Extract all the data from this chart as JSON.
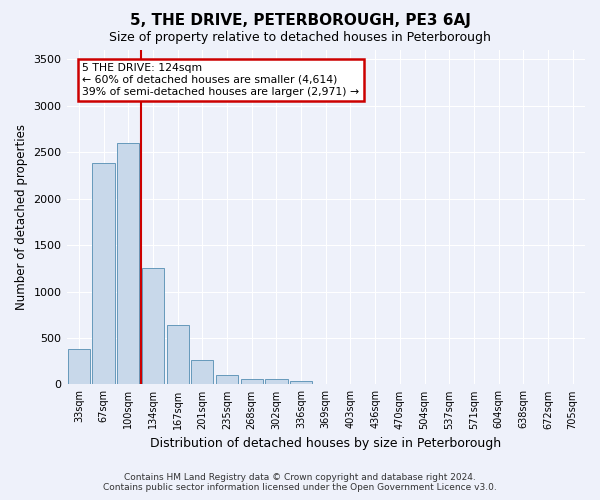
{
  "title": "5, THE DRIVE, PETERBOROUGH, PE3 6AJ",
  "subtitle": "Size of property relative to detached houses in Peterborough",
  "xlabel": "Distribution of detached houses by size in Peterborough",
  "ylabel": "Number of detached properties",
  "footer_line1": "Contains HM Land Registry data © Crown copyright and database right 2024.",
  "footer_line2": "Contains public sector information licensed under the Open Government Licence v3.0.",
  "annotation_line1": "5 THE DRIVE: 124sqm",
  "annotation_line2": "← 60% of detached houses are smaller (4,614)",
  "annotation_line3": "39% of semi-detached houses are larger (2,971) →",
  "bar_labels": [
    "33sqm",
    "67sqm",
    "100sqm",
    "134sqm",
    "167sqm",
    "201sqm",
    "235sqm",
    "268sqm",
    "302sqm",
    "336sqm",
    "369sqm",
    "403sqm",
    "436sqm",
    "470sqm",
    "504sqm",
    "537sqm",
    "571sqm",
    "604sqm",
    "638sqm",
    "672sqm",
    "705sqm"
  ],
  "bar_values": [
    380,
    2380,
    2600,
    1250,
    640,
    260,
    100,
    60,
    55,
    40,
    0,
    0,
    0,
    0,
    0,
    0,
    0,
    0,
    0,
    0,
    0
  ],
  "bar_color": "#c8d8ea",
  "bar_edgecolor": "#6699bb",
  "red_line_x": 2.67,
  "ylim": [
    0,
    3600
  ],
  "yticks": [
    0,
    500,
    1000,
    1500,
    2000,
    2500,
    3000,
    3500
  ],
  "bg_color": "#eef1fa",
  "grid_color": "#ffffff",
  "annotation_box_color": "#cc0000"
}
